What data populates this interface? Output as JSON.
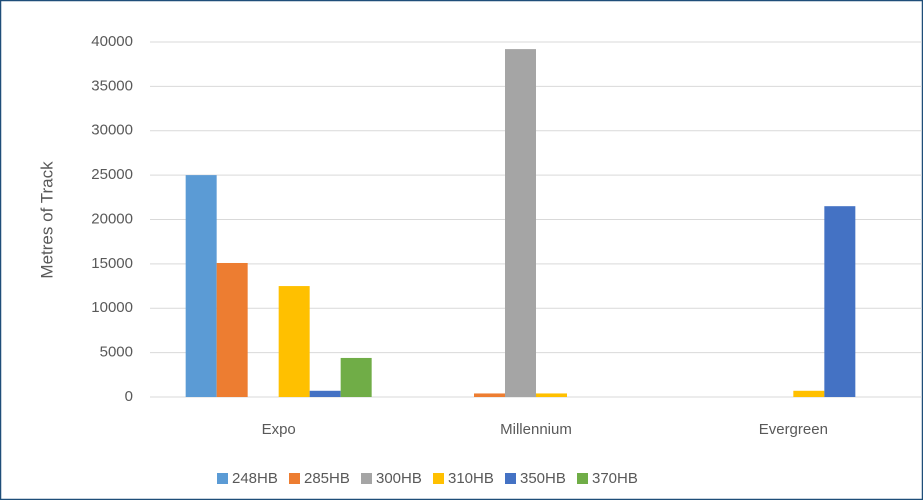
{
  "chart_data": {
    "type": "bar",
    "y_label": "Metres of Track",
    "categories": [
      "Expo",
      "Millennium",
      "Evergreen"
    ],
    "series": [
      {
        "name": "248HB",
        "color": "#5b9bd5",
        "values": [
          25000,
          0,
          0
        ]
      },
      {
        "name": "285HB",
        "color": "#ed7d31",
        "values": [
          15100,
          400,
          0
        ]
      },
      {
        "name": "300HB",
        "color": "#a5a5a5",
        "values": [
          0,
          39200,
          0
        ]
      },
      {
        "name": "310HB",
        "color": "#ffc000",
        "values": [
          12500,
          400,
          700
        ]
      },
      {
        "name": "350HB",
        "color": "#4472c4",
        "values": [
          700,
          0,
          21500
        ]
      },
      {
        "name": "370HB",
        "color": "#70ad47",
        "values": [
          4400,
          0,
          0
        ]
      }
    ],
    "ylim": [
      0,
      40000
    ],
    "yticks": [
      0,
      5000,
      10000,
      15000,
      20000,
      25000,
      30000,
      35000,
      40000
    ],
    "grid": true,
    "legend": "bottom"
  }
}
